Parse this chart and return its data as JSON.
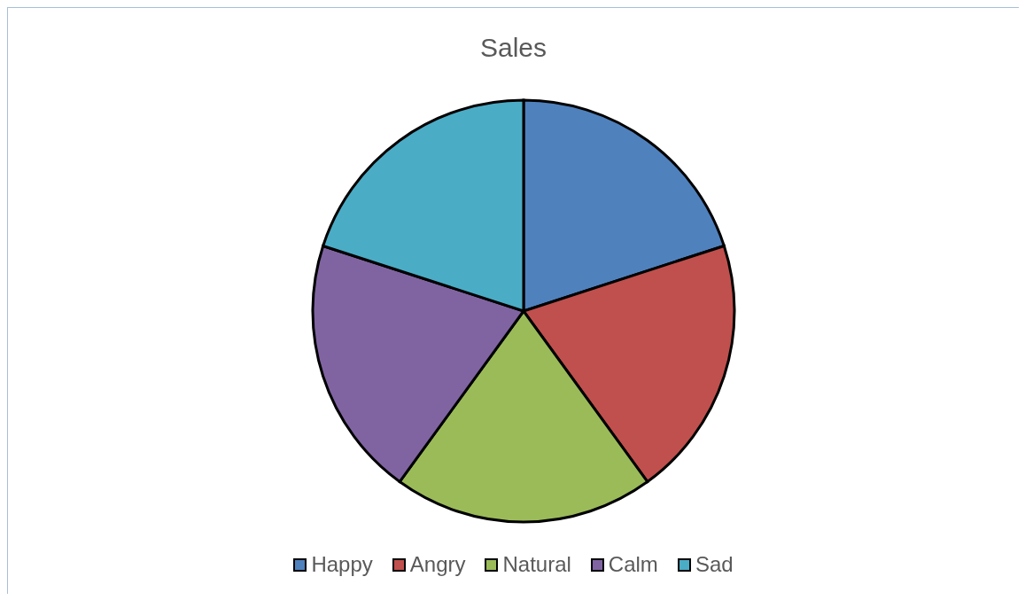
{
  "chart_data": {
    "type": "pie",
    "title": "Sales",
    "categories": [
      "Happy",
      "Angry",
      "Natural",
      "Calm",
      "Sad"
    ],
    "values": [
      20,
      20,
      20,
      20,
      20
    ],
    "colors": [
      "#4f81bd",
      "#c0504d",
      "#9bbb59",
      "#8064a2",
      "#4bacc6"
    ],
    "legend": "bottom"
  }
}
